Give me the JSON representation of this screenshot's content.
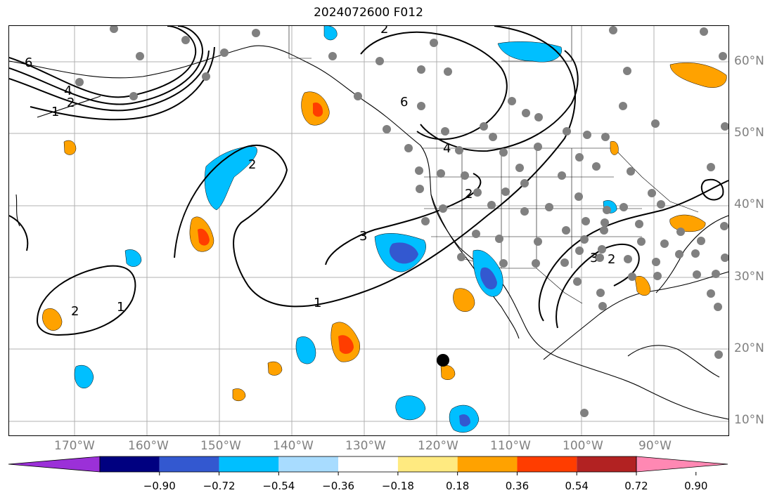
{
  "title": "2024072600 F012",
  "latitude_labels": [
    "60°N",
    "50°N",
    "40°N",
    "30°N",
    "20°N",
    "10°N"
  ],
  "longitude_labels": [
    "170°W",
    "160°W",
    "150°W",
    "140°W",
    "130°W",
    "120°W",
    "110°W",
    "100°W",
    "90°W"
  ],
  "colorbar": {
    "tick_labels": [
      "−0.90",
      "−0.72",
      "−0.54",
      "−0.36",
      "−0.18",
      "0.18",
      "0.36",
      "0.54",
      "0.72",
      "0.90"
    ],
    "colors": [
      "#9b30d8",
      "#000080",
      "#3358d0",
      "#00bfff",
      "#a8dcff",
      "#ffffff",
      "#ffea80",
      "#ffa200",
      "#ff3d00",
      "#b22222",
      "#ff88b3"
    ]
  },
  "contour_labels": [
    "6",
    "4",
    "2",
    "1",
    "3"
  ],
  "marker_color": "#808080",
  "contour_color": "#000000"
}
